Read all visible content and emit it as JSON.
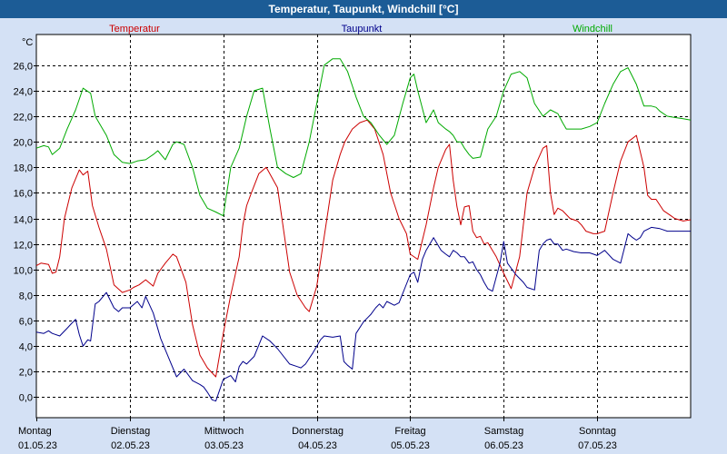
{
  "window": {
    "title": "Temperatur, Taupunkt, Windchill [°C]"
  },
  "chart_data": {
    "type": "line",
    "title": "Temperatur, Taupunkt, Windchill [°C]",
    "ylabel": "°C",
    "ylim": [
      -1.6,
      28.4
    ],
    "yticks": [
      "0,0",
      "2,0",
      "4,0",
      "6,0",
      "8,0",
      "10,0",
      "12,0",
      "14,0",
      "16,0",
      "18,0",
      "20,0",
      "22,0",
      "24,0",
      "26,0"
    ],
    "xlim": [
      0,
      7
    ],
    "days": [
      {
        "name": "Montag",
        "date": "01.05.23"
      },
      {
        "name": "Dienstag",
        "date": "02.05.23"
      },
      {
        "name": "Mittwoch",
        "date": "03.05.23"
      },
      {
        "name": "Donnerstag",
        "date": "04.05.23"
      },
      {
        "name": "Freitag",
        "date": "05.05.23"
      },
      {
        "name": "Samstag",
        "date": "06.05.23"
      },
      {
        "name": "Sonntag",
        "date": "07.05.23"
      }
    ],
    "grid": true,
    "series": [
      {
        "name": "Temperatur",
        "color": "#cc0000",
        "x": [
          0,
          0.05,
          0.13,
          0.17,
          0.21,
          0.25,
          0.3,
          0.38,
          0.46,
          0.5,
          0.55,
          0.6,
          0.67,
          0.75,
          0.83,
          0.92,
          1.0,
          1.04,
          1.1,
          1.17,
          1.25,
          1.3,
          1.38,
          1.46,
          1.5,
          1.6,
          1.67,
          1.75,
          1.83,
          1.92,
          2.0,
          2.08,
          2.17,
          2.21,
          2.25,
          2.3,
          2.38,
          2.46,
          2.58,
          2.71,
          2.79,
          2.88,
          2.92,
          3.0,
          3.08,
          3.17,
          3.25,
          3.3,
          3.38,
          3.46,
          3.54,
          3.62,
          3.71,
          3.79,
          3.88,
          3.96,
          4.0,
          4.08,
          4.17,
          4.25,
          4.3,
          4.38,
          4.42,
          4.46,
          4.5,
          4.54,
          4.58,
          4.63,
          4.67,
          4.71,
          4.75,
          4.79,
          4.83,
          4.92,
          5.0,
          5.08,
          5.17,
          5.25,
          5.33,
          5.42,
          5.46,
          5.5,
          5.54,
          5.58,
          5.63,
          5.71,
          5.79,
          5.83,
          5.88,
          5.96,
          6.0,
          6.08,
          6.17,
          6.25,
          6.33,
          6.42,
          6.5,
          6.54,
          6.58,
          6.63,
          6.71,
          6.79,
          6.83,
          6.92,
          7.0
        ],
        "values": [
          10.3,
          10.5,
          10.4,
          9.7,
          9.8,
          11.0,
          14.0,
          16.4,
          17.8,
          17.4,
          17.7,
          15.0,
          13.3,
          11.6,
          8.8,
          8.2,
          8.4,
          8.6,
          8.8,
          9.2,
          8.7,
          9.7,
          10.5,
          11.2,
          11.0,
          9.0,
          5.7,
          3.3,
          2.3,
          1.6,
          5.0,
          8.0,
          11.0,
          13.5,
          15.0,
          16.0,
          17.5,
          18.0,
          16.4,
          9.8,
          8.0,
          7.0,
          6.7,
          8.7,
          12.6,
          17.0,
          19.0,
          20.0,
          21.0,
          21.5,
          21.7,
          21.0,
          19.0,
          16.0,
          14.0,
          12.8,
          11.2,
          10.8,
          13.5,
          16.4,
          18.0,
          19.4,
          19.8,
          17.0,
          14.9,
          13.5,
          14.9,
          15.0,
          13.0,
          12.5,
          12.6,
          12.0,
          12.1,
          11.0,
          9.7,
          8.5,
          11.0,
          16.0,
          18.0,
          19.5,
          19.7,
          16.0,
          14.3,
          14.8,
          14.6,
          14.0,
          13.8,
          13.5,
          13.0,
          12.8,
          12.8,
          13.0,
          16.0,
          18.5,
          20.0,
          20.5,
          18.0,
          15.8,
          15.5,
          15.5,
          14.6,
          14.2,
          14.0,
          13.8,
          13.9
        ]
      },
      {
        "name": "Taupunkt",
        "color": "#00008b",
        "x": [
          0,
          0.08,
          0.13,
          0.17,
          0.25,
          0.33,
          0.38,
          0.42,
          0.46,
          0.5,
          0.55,
          0.58,
          0.63,
          0.67,
          0.75,
          0.83,
          0.88,
          0.92,
          1.0,
          1.08,
          1.13,
          1.17,
          1.25,
          1.33,
          1.42,
          1.5,
          1.58,
          1.67,
          1.75,
          1.79,
          1.83,
          1.88,
          1.92,
          2.0,
          2.08,
          2.13,
          2.17,
          2.21,
          2.25,
          2.33,
          2.42,
          2.5,
          2.58,
          2.71,
          2.79,
          2.83,
          2.88,
          2.96,
          3.04,
          3.08,
          3.17,
          3.25,
          3.29,
          3.33,
          3.38,
          3.42,
          3.5,
          3.54,
          3.58,
          3.63,
          3.67,
          3.71,
          3.75,
          3.83,
          3.88,
          4.0,
          4.04,
          4.08,
          4.13,
          4.17,
          4.25,
          4.33,
          4.38,
          4.42,
          4.46,
          4.5,
          4.54,
          4.58,
          4.63,
          4.67,
          4.71,
          4.75,
          4.79,
          4.83,
          4.88,
          4.96,
          5.0,
          5.04,
          5.13,
          5.21,
          5.25,
          5.33,
          5.38,
          5.42,
          5.46,
          5.5,
          5.54,
          5.58,
          5.63,
          5.67,
          5.75,
          5.83,
          5.92,
          5.96,
          6.0,
          6.08,
          6.17,
          6.25,
          6.33,
          6.38,
          6.42,
          6.46,
          6.5,
          6.58,
          6.67,
          6.75,
          6.83,
          6.92,
          7.0
        ],
        "values": [
          5.1,
          5.0,
          5.2,
          5.0,
          4.8,
          5.4,
          5.8,
          6.1,
          4.9,
          4.0,
          4.5,
          4.4,
          7.3,
          7.5,
          8.2,
          7.0,
          6.7,
          7.0,
          7.0,
          7.5,
          7.0,
          7.9,
          6.6,
          4.6,
          3.0,
          1.6,
          2.2,
          1.3,
          1.0,
          0.8,
          0.4,
          -0.2,
          -0.3,
          1.4,
          1.7,
          1.2,
          2.4,
          2.8,
          2.6,
          3.2,
          4.8,
          4.4,
          3.8,
          2.6,
          2.4,
          2.3,
          2.6,
          3.5,
          4.5,
          4.8,
          4.7,
          4.8,
          2.8,
          2.5,
          2.2,
          5.0,
          5.9,
          6.2,
          6.5,
          7.0,
          7.3,
          7.0,
          7.5,
          7.2,
          7.4,
          9.6,
          9.8,
          9.0,
          10.8,
          11.5,
          12.5,
          11.5,
          11.2,
          11.0,
          11.5,
          11.3,
          11.0,
          11.0,
          10.5,
          10.6,
          10.0,
          9.6,
          9.0,
          8.5,
          8.3,
          10.5,
          12.2,
          10.5,
          9.6,
          9.0,
          8.6,
          8.4,
          11.5,
          12.0,
          12.3,
          12.4,
          12.0,
          12.0,
          11.5,
          11.6,
          11.4,
          11.3,
          11.3,
          11.2,
          11.1,
          11.5,
          10.8,
          10.5,
          12.8,
          12.5,
          12.3,
          12.5,
          13.0,
          13.3,
          13.2,
          13.0,
          13.0,
          13.0,
          13.0
        ]
      },
      {
        "name": "Windchill",
        "color": "#00aa00",
        "x": [
          0,
          0.08,
          0.13,
          0.17,
          0.25,
          0.33,
          0.42,
          0.5,
          0.54,
          0.58,
          0.63,
          0.67,
          0.75,
          0.83,
          0.92,
          1.0,
          1.08,
          1.17,
          1.25,
          1.3,
          1.38,
          1.46,
          1.5,
          1.58,
          1.67,
          1.75,
          1.83,
          1.92,
          2.0,
          2.08,
          2.17,
          2.25,
          2.33,
          2.42,
          2.5,
          2.58,
          2.67,
          2.75,
          2.83,
          2.92,
          3.0,
          3.04,
          3.08,
          3.17,
          3.25,
          3.33,
          3.42,
          3.5,
          3.58,
          3.67,
          3.75,
          3.83,
          3.92,
          4.0,
          4.04,
          4.08,
          4.17,
          4.25,
          4.3,
          4.38,
          4.42,
          4.46,
          4.5,
          4.54,
          4.58,
          4.63,
          4.67,
          4.75,
          4.83,
          4.92,
          5.0,
          5.08,
          5.17,
          5.25,
          5.33,
          5.42,
          5.5,
          5.58,
          5.63,
          5.67,
          5.75,
          5.83,
          5.92,
          6.0,
          6.08,
          6.17,
          6.25,
          6.33,
          6.42,
          6.5,
          6.58,
          6.63,
          6.67,
          6.75,
          6.83,
          6.92,
          7.0
        ],
        "values": [
          19.5,
          19.7,
          19.6,
          19.0,
          19.5,
          21.0,
          22.5,
          24.2,
          24.0,
          23.8,
          22.0,
          21.5,
          20.5,
          19.0,
          18.4,
          18.3,
          18.5,
          18.6,
          19.0,
          19.3,
          18.6,
          19.8,
          20.0,
          19.8,
          18.0,
          15.8,
          14.8,
          14.5,
          14.2,
          18.0,
          19.5,
          22.0,
          24.0,
          24.2,
          21.0,
          18.0,
          17.5,
          17.2,
          17.5,
          20.0,
          23.0,
          24.5,
          26.0,
          26.5,
          26.5,
          25.5,
          23.5,
          22.0,
          21.5,
          20.5,
          19.8,
          20.5,
          23.0,
          25.0,
          25.3,
          24.0,
          21.5,
          22.5,
          21.5,
          21.0,
          20.8,
          20.5,
          20.0,
          20.0,
          19.5,
          19.0,
          18.7,
          18.8,
          21.0,
          22.0,
          24.0,
          25.3,
          25.5,
          25.0,
          23.0,
          22.0,
          22.5,
          22.2,
          21.5,
          21.0,
          21.0,
          21.0,
          21.2,
          21.5,
          23.0,
          24.5,
          25.5,
          25.8,
          24.5,
          22.8,
          22.8,
          22.7,
          22.4,
          22.0,
          21.9,
          21.8,
          21.7
        ]
      }
    ]
  }
}
